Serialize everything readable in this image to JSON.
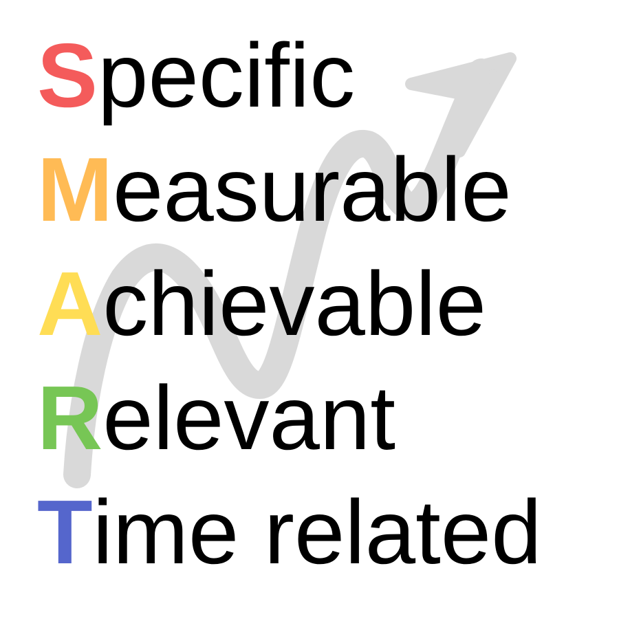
{
  "smart": {
    "rows": [
      {
        "initial": "S",
        "rest": "pecific",
        "color": "#f45b5b"
      },
      {
        "initial": "M",
        "rest": "easurable",
        "color": "#ffbb55"
      },
      {
        "initial": "A",
        "rest": "chievable",
        "color": "#ffdd55"
      },
      {
        "initial": "R",
        "rest": "elevant",
        "color": "#77c655"
      },
      {
        "initial": "T",
        "rest": "ime related",
        "color": "#5566cc"
      }
    ]
  },
  "background": {
    "icon": "upward-trend-arrow-icon",
    "arrow_color": "#d9d9d9"
  }
}
